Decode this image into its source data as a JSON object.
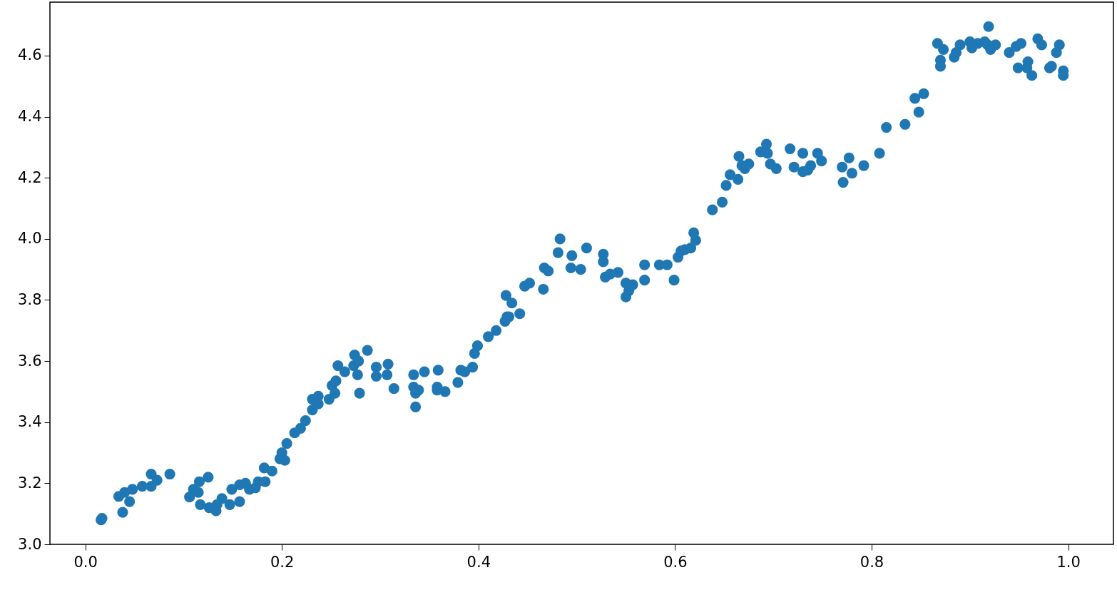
{
  "chart_data": {
    "type": "scatter",
    "marker": "circle",
    "grid": false,
    "xlim": [
      -0.036,
      1.046
    ],
    "ylim": [
      3.0,
      4.775
    ],
    "xticks": [
      {
        "value": 0,
        "label": "0.0"
      },
      0.2,
      0.4,
      0.6,
      0.8,
      {
        "value": 1,
        "label": "1.0"
      }
    ],
    "yticks": [
      {
        "value": 3,
        "label": "3.0"
      },
      3.2,
      3.4,
      3.6,
      3.8,
      {
        "value": 4,
        "label": "4.0"
      },
      4.2,
      4.4,
      4.6
    ],
    "series": [
      {
        "color": "#1f77b4",
        "x": [
          0.016,
          0.017,
          0.034,
          0.038,
          0.04,
          0.045,
          0.048,
          0.058,
          0.067,
          0.067,
          0.073,
          0.086,
          0.106,
          0.11,
          0.116,
          0.115,
          0.117,
          0.125,
          0.126,
          0.133,
          0.134,
          0.139,
          0.147,
          0.149,
          0.157,
          0.157,
          0.163,
          0.167,
          0.173,
          0.176,
          0.182,
          0.183,
          0.19,
          0.198,
          0.2,
          0.203,
          0.205,
          0.213,
          0.219,
          0.224,
          0.231,
          0.231,
          0.237,
          0.237,
          0.248,
          0.251,
          0.254,
          0.255,
          0.257,
          0.264,
          0.273,
          0.274,
          0.277,
          0.278,
          0.279,
          0.287,
          0.296,
          0.296,
          0.307,
          0.308,
          0.314,
          0.334,
          0.334,
          0.336,
          0.336,
          0.339,
          0.345,
          0.358,
          0.359,
          0.358,
          0.366,
          0.379,
          0.382,
          0.386,
          0.394,
          0.396,
          0.399,
          0.41,
          0.418,
          0.427,
          0.428,
          0.429,
          0.431,
          0.434,
          0.442,
          0.447,
          0.452,
          0.466,
          0.467,
          0.471,
          0.481,
          0.483,
          0.494,
          0.495,
          0.504,
          0.51,
          0.527,
          0.527,
          0.529,
          0.534,
          0.542,
          0.55,
          0.55,
          0.553,
          0.557,
          0.569,
          0.569,
          0.584,
          0.592,
          0.599,
          0.603,
          0.606,
          0.61,
          0.616,
          0.619,
          0.621,
          0.638,
          0.648,
          0.652,
          0.656,
          0.664,
          0.665,
          0.668,
          0.671,
          0.675,
          0.687,
          0.693,
          0.694,
          0.697,
          0.703,
          0.717,
          0.721,
          0.73,
          0.73,
          0.735,
          0.738,
          0.745,
          0.749,
          0.77,
          0.771,
          0.777,
          0.78,
          0.792,
          0.808,
          0.815,
          0.834,
          0.844,
          0.848,
          0.853,
          0.867,
          0.87,
          0.87,
          0.873,
          0.884,
          0.886,
          0.89,
          0.9,
          0.902,
          0.908,
          0.915,
          0.919,
          0.918,
          0.921,
          0.926,
          0.94,
          0.947,
          0.949,
          0.952,
          0.958,
          0.959,
          0.963,
          0.969,
          0.973,
          0.981,
          0.983,
          0.988,
          0.991,
          0.995,
          0.995
        ],
        "values": [
          3.08,
          3.085,
          3.157,
          3.105,
          3.17,
          3.14,
          3.18,
          3.19,
          3.23,
          3.19,
          3.21,
          3.23,
          3.155,
          3.18,
          3.205,
          3.17,
          3.13,
          3.22,
          3.12,
          3.11,
          3.13,
          3.15,
          3.13,
          3.18,
          3.14,
          3.195,
          3.2,
          3.18,
          3.185,
          3.205,
          3.25,
          3.205,
          3.24,
          3.28,
          3.3,
          3.275,
          3.33,
          3.365,
          3.38,
          3.405,
          3.44,
          3.475,
          3.485,
          3.46,
          3.475,
          3.52,
          3.495,
          3.535,
          3.585,
          3.565,
          3.585,
          3.62,
          3.555,
          3.6,
          3.495,
          3.635,
          3.58,
          3.55,
          3.555,
          3.59,
          3.51,
          3.555,
          3.515,
          3.495,
          3.45,
          3.505,
          3.565,
          3.505,
          3.57,
          3.515,
          3.5,
          3.53,
          3.57,
          3.565,
          3.58,
          3.625,
          3.65,
          3.68,
          3.7,
          3.73,
          3.815,
          3.745,
          3.745,
          3.79,
          3.755,
          3.845,
          3.855,
          3.835,
          3.905,
          3.895,
          3.955,
          4.0,
          3.905,
          3.945,
          3.9,
          3.97,
          3.95,
          3.925,
          3.875,
          3.885,
          3.89,
          3.855,
          3.81,
          3.83,
          3.85,
          3.915,
          3.865,
          3.915,
          3.915,
          3.865,
          3.94,
          3.96,
          3.965,
          3.97,
          4.02,
          3.995,
          4.095,
          4.12,
          4.175,
          4.21,
          4.195,
          4.27,
          4.24,
          4.23,
          4.245,
          4.285,
          4.31,
          4.28,
          4.245,
          4.23,
          4.295,
          4.235,
          4.28,
          4.22,
          4.225,
          4.24,
          4.28,
          4.255,
          4.235,
          4.185,
          4.265,
          4.215,
          4.24,
          4.28,
          4.365,
          4.375,
          4.46,
          4.415,
          4.475,
          4.64,
          4.585,
          4.565,
          4.62,
          4.595,
          4.61,
          4.635,
          4.645,
          4.625,
          4.64,
          4.645,
          4.695,
          4.635,
          4.62,
          4.635,
          4.61,
          4.63,
          4.56,
          4.64,
          4.56,
          4.58,
          4.535,
          4.655,
          4.635,
          4.56,
          4.565,
          4.61,
          4.635,
          4.55,
          4.535
        ]
      }
    ]
  }
}
